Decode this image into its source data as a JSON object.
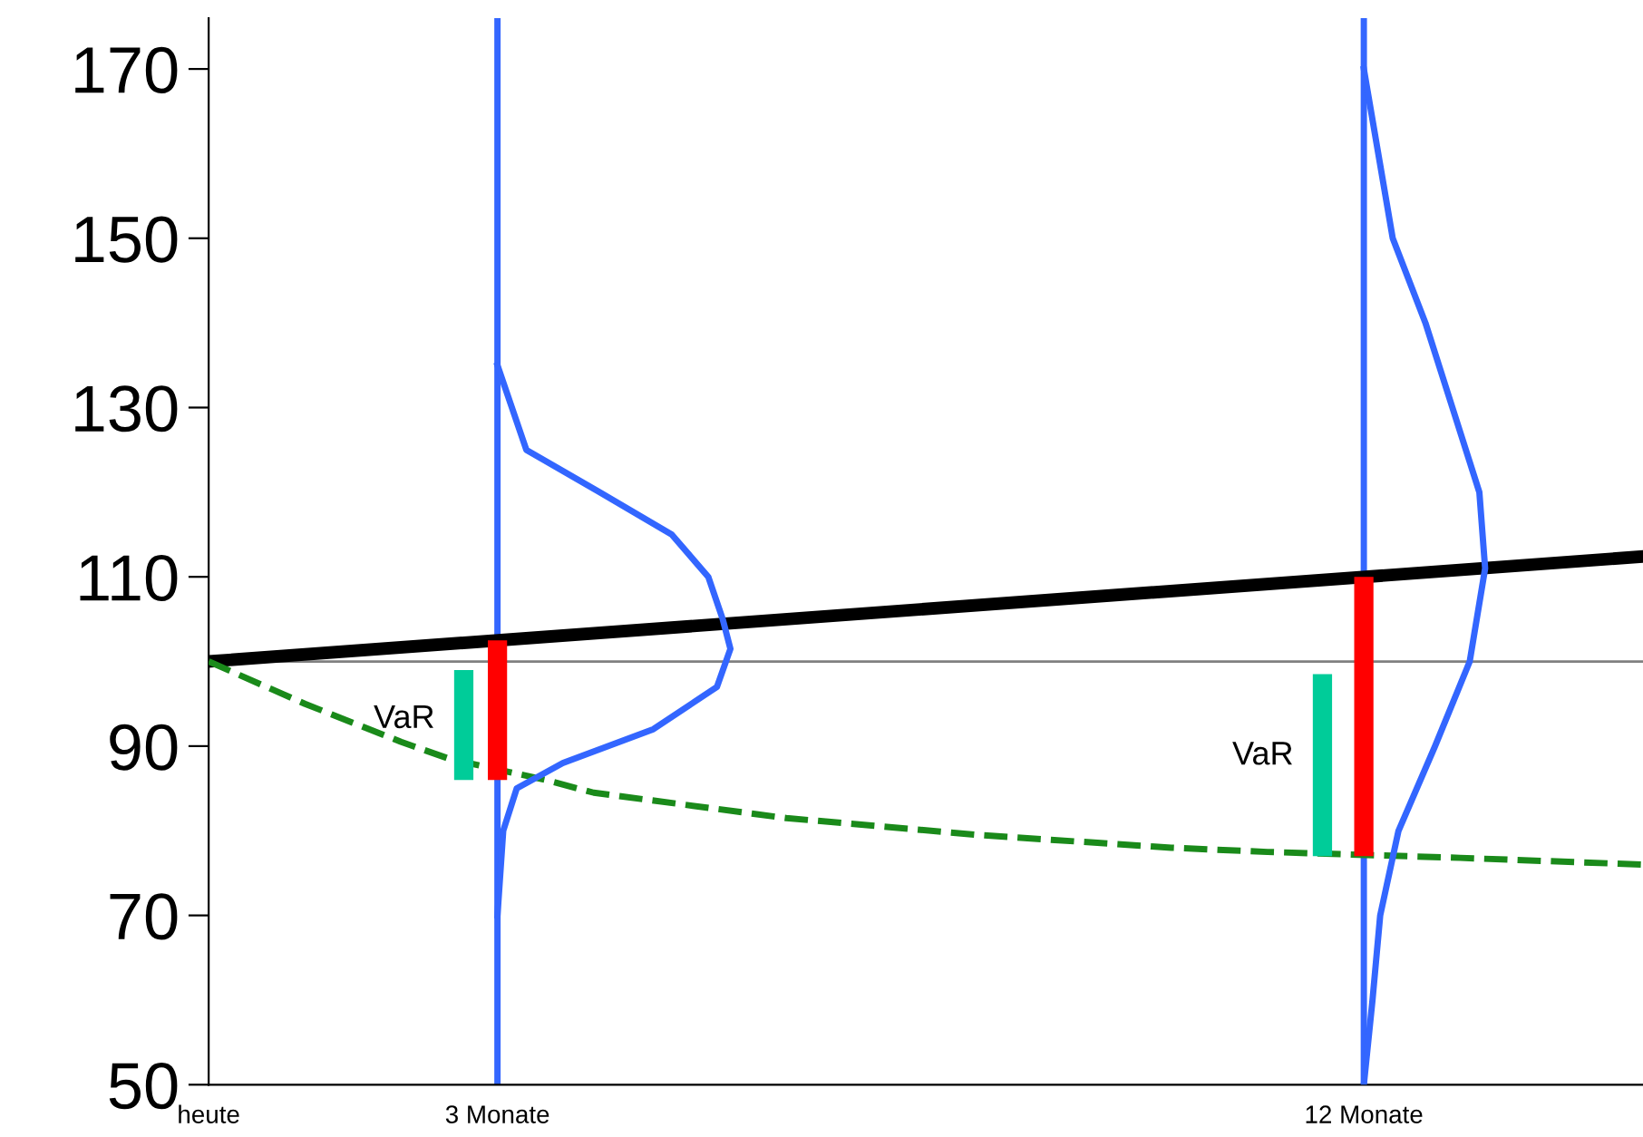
{
  "chart_data": {
    "type": "line",
    "xlim": [
      0,
      14.9
    ],
    "ylim": [
      50,
      176
    ],
    "xticks": [
      {
        "value": 0,
        "label": "heute"
      },
      {
        "value": 3,
        "label": "3 Monate"
      },
      {
        "value": 12,
        "label": "12 Monate"
      }
    ],
    "yticks": [
      50,
      70,
      90,
      110,
      130,
      150,
      170
    ],
    "grid": false,
    "legend": false,
    "marker": "none",
    "ref_lines": [
      {
        "axis": "y",
        "value": 100,
        "color": "#808080"
      },
      {
        "axis": "x",
        "value": 3,
        "color": "#3366ff"
      },
      {
        "axis": "x",
        "value": 12,
        "color": "#3366ff"
      }
    ],
    "series": [
      {
        "color": "#000000",
        "x": [
          0,
          14.9
        ],
        "values": [
          100,
          112.4
        ],
        "line_style": "solid"
      },
      {
        "color": "#1a8a1a",
        "x": [
          0,
          1,
          2,
          2.5,
          3.5,
          4,
          6,
          8,
          10,
          11,
          13,
          14.9
        ],
        "values": [
          100,
          95,
          90.5,
          88.5,
          86,
          84.5,
          81.5,
          79.5,
          78,
          77.5,
          76.8,
          76
        ],
        "line_style": "dashed"
      },
      {
        "color": "#3366ff",
        "x": [
          3,
          3.3,
          4.06,
          4.81,
          5.19,
          5.34,
          5.42,
          5.28,
          4.62,
          3.68,
          3.2,
          3.06,
          3
        ],
        "values": [
          135,
          125,
          120,
          115,
          110,
          105,
          101.5,
          97,
          92,
          88,
          85,
          80,
          70
        ],
        "line_style": "solid"
      },
      {
        "color": "#3366ff",
        "x": [
          12,
          12.3,
          12.64,
          12.92,
          13.2,
          13.26,
          13.1,
          12.74,
          12.36,
          12.17,
          12.09,
          12
        ],
        "values": [
          170,
          150,
          140,
          130,
          120,
          111,
          100,
          90,
          80,
          70,
          60,
          50
        ],
        "line_style": "solid"
      },
      {
        "type": "bar",
        "color": "#ff0000",
        "x": [
          3,
          12
        ],
        "base": [
          86,
          77
        ],
        "values": [
          16.5,
          33
        ]
      },
      {
        "type": "bar",
        "color": "#00cc99",
        "x": [
          2.65,
          11.57
        ],
        "base": [
          86,
          77
        ],
        "values": [
          13,
          21.5
        ]
      }
    ],
    "annotations": [
      "VaR",
      "VaR"
    ]
  }
}
